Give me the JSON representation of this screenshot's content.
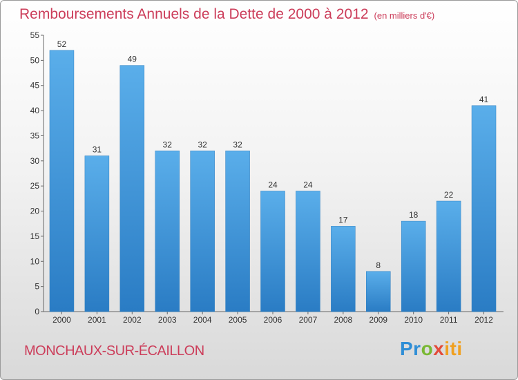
{
  "header": {
    "title": "Remboursements Annuels de la Dette de 2000 à 2012",
    "unit": "(en milliers d'€)"
  },
  "footer": {
    "commune": "MONCHAUX-SUR-ÉCAILLON"
  },
  "logo": {
    "parts": [
      "Pr",
      "o",
      "x",
      "iti"
    ]
  },
  "colors": {
    "title": "#cc3d5a",
    "bar_top": "#5aaeea",
    "bar_bottom": "#2a7cc4"
  },
  "chart_data": {
    "type": "bar",
    "title": "Remboursements Annuels de la Dette de 2000 à 2012",
    "xlabel": "",
    "ylabel": "",
    "categories": [
      "2000",
      "2001",
      "2002",
      "2003",
      "2004",
      "2005",
      "2006",
      "2007",
      "2008",
      "2009",
      "2010",
      "2011",
      "2012"
    ],
    "values": [
      52,
      31,
      49,
      32,
      32,
      32,
      24,
      24,
      17,
      8,
      18,
      22,
      41
    ],
    "ylim": [
      0,
      55
    ],
    "yticks": [
      0,
      5,
      10,
      15,
      20,
      25,
      30,
      35,
      40,
      45,
      50,
      55
    ],
    "grid": false,
    "legend": "none"
  }
}
